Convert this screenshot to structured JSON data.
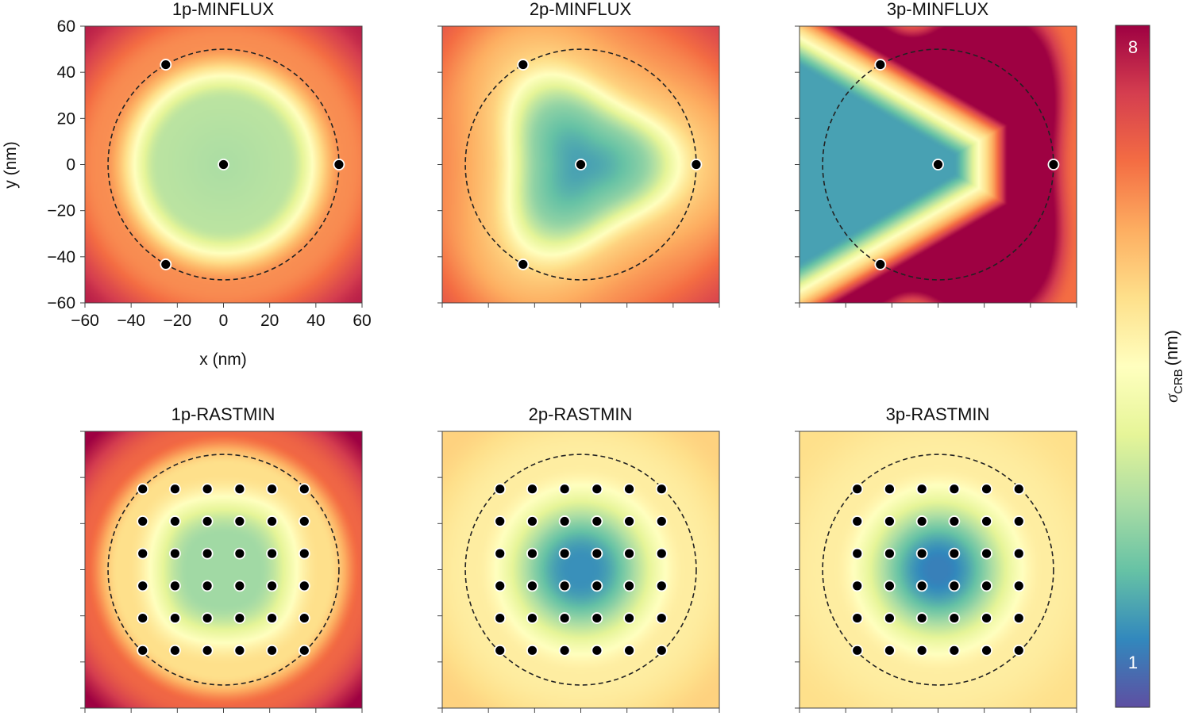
{
  "chart_data": {
    "type": "heatmap",
    "panels": [
      {
        "title": "1p-MINFLUX",
        "scheme": "minflux",
        "power": 1,
        "value_scale": 0.7,
        "show_axes_labels": true
      },
      {
        "title": "2p-MINFLUX",
        "scheme": "minflux",
        "power": 2,
        "value_scale": 0.7,
        "show_axes_labels": false
      },
      {
        "title": "3p-MINFLUX",
        "scheme": "minflux",
        "power": 3,
        "value_scale": 1.0,
        "show_axes_labels": false
      },
      {
        "title": "1p-RASTMIN",
        "scheme": "rastmin",
        "power": 1,
        "value_scale": 0.7,
        "show_axes_labels": false
      },
      {
        "title": "2p-RASTMIN",
        "scheme": "rastmin",
        "power": 2,
        "value_scale": 0.7,
        "show_axes_labels": false
      },
      {
        "title": "3p-RASTMIN",
        "scheme": "rastmin",
        "power": 3,
        "value_scale": 0.7,
        "show_axes_labels": false
      }
    ],
    "minflux_beam_positions_nm": [
      [
        0,
        0
      ],
      [
        50,
        0
      ],
      [
        -25,
        43.3
      ],
      [
        -25,
        -43.3
      ]
    ],
    "rastmin_grid_nm": [
      -35,
      -21,
      -7,
      7,
      21,
      35
    ],
    "circle_radius_nm": 50,
    "xlabel": "x (nm)",
    "ylabel": "y (nm)",
    "xlim": [
      -60,
      60
    ],
    "ylim": [
      -60,
      60
    ],
    "x_ticks": [
      -60,
      -40,
      -20,
      0,
      20,
      40,
      60
    ],
    "y_ticks": [
      -60,
      -40,
      -20,
      0,
      20,
      40,
      60
    ],
    "x_tick_labels": [
      "−60",
      "−40",
      "−20",
      "0",
      "20",
      "40",
      "60"
    ],
    "y_tick_labels": [
      "−60",
      "−40",
      "−20",
      "0",
      "20",
      "40",
      "60"
    ],
    "colorbar": {
      "label": "σ",
      "subscript": "CRB",
      "unit": "(nm)",
      "min": 1,
      "max": 8,
      "min_label": "1",
      "max_label": "8",
      "colors": [
        "#5e4fa2",
        "#3288bd",
        "#66c2a5",
        "#abdda4",
        "#e6f598",
        "#ffffbf",
        "#fee08b",
        "#fdae61",
        "#f46d43",
        "#d53e4f",
        "#9e0142"
      ]
    }
  }
}
